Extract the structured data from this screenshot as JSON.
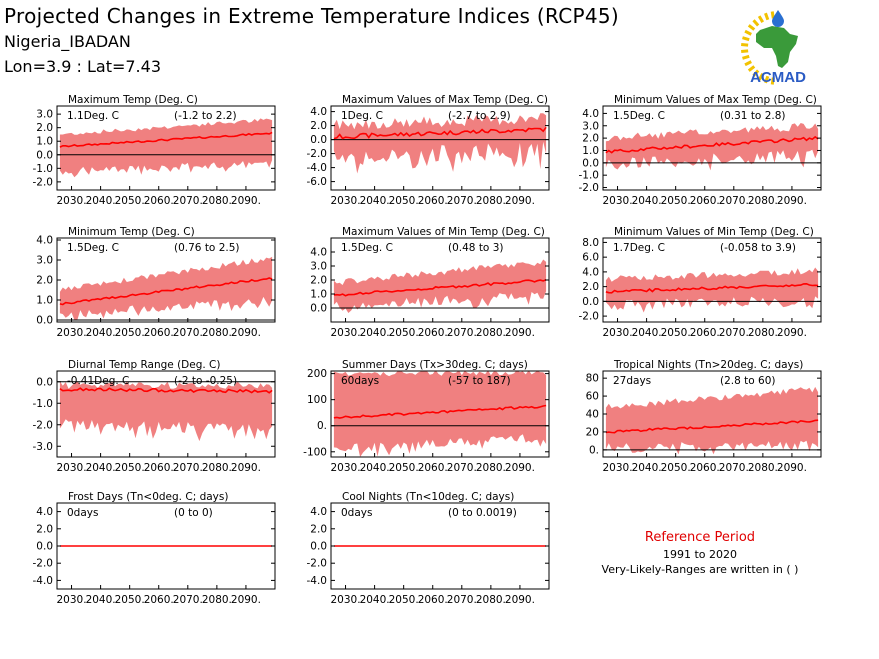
{
  "header": {
    "title": "Projected Changes in Extreme Temperature Indices (RCP45)",
    "location": "Nigeria_IBADAN",
    "coords": "Lon=3.9 : Lat=7.43"
  },
  "logo": {
    "text": "ACMAD",
    "icon": "africa-map-icon",
    "sun_color": "#f2c200",
    "drop_color": "#2a6fd1",
    "map_color": "#3a9a3a",
    "text_color": "#2a5bc4"
  },
  "reference": {
    "title": "Reference Period",
    "years": "1991 to 2020",
    "note": "Very-Likely-Ranges are written in ( )"
  },
  "colors": {
    "band": "#f08080",
    "line": "#ff0000",
    "zero": "#000000"
  },
  "chart_data": [
    {
      "type": "area",
      "title": "Maximum Temp (Deg. C)",
      "ann_left": "1.1Deg. C",
      "ann_right": "(-1.2 to 2.2)",
      "ylim": [
        -2.6,
        3.6
      ],
      "yticks": [
        -2,
        -1,
        0,
        1,
        2,
        3
      ],
      "ytick_labels": [
        "-2.0",
        "-1.0",
        "0.0",
        "1.0",
        "2.0",
        "3.0"
      ],
      "xticks": [
        2030,
        2040,
        2050,
        2060,
        2070,
        2080,
        2090
      ],
      "xtick_labels": [
        "2030.",
        "2040.",
        "2050.",
        "2060.",
        "2070.",
        "2080.",
        "2090."
      ],
      "x_range": [
        2025,
        2100
      ],
      "mean_start": 0.6,
      "mean_end": 1.6,
      "low_start": -1.2,
      "low_end": -0.6,
      "high_start": 1.5,
      "high_end": 2.6,
      "noise": 0.35
    },
    {
      "type": "area",
      "title": "Maximum Values of Max Temp (Deg. C)",
      "ann_left": "1Deg. C",
      "ann_right": "(-2.7 to 2.9)",
      "ylim": [
        -7.2,
        4.8
      ],
      "yticks": [
        -6,
        -4,
        -2,
        0,
        2,
        4
      ],
      "ytick_labels": [
        "-6.0",
        "-4.0",
        "-2.0",
        "0.0",
        "2.0",
        "4.0"
      ],
      "xticks": [
        2030,
        2040,
        2050,
        2060,
        2070,
        2080,
        2090
      ],
      "xtick_labels": [
        "2030.",
        "2040.",
        "2050.",
        "2060.",
        "2070.",
        "2080.",
        "2090."
      ],
      "x_range": [
        2025,
        2100
      ],
      "mean_start": 0.4,
      "mean_end": 1.5,
      "low_start": -2.5,
      "low_end": -1.5,
      "high_start": 2.2,
      "high_end": 3.0,
      "noise": 1.8
    },
    {
      "type": "area",
      "title": "Minimum Values of Max Temp (Deg. C)",
      "ann_left": "1.5Deg. C",
      "ann_right": "(0.31 to 2.8)",
      "ylim": [
        -2.2,
        4.6
      ],
      "yticks": [
        -2,
        -1,
        0,
        1,
        2,
        3,
        4
      ],
      "ytick_labels": [
        "-2.0",
        "-1.0",
        "0.0",
        "1.0",
        "2.0",
        "3.0",
        "4.0"
      ],
      "xticks": [
        2030,
        2040,
        2050,
        2060,
        2070,
        2080,
        2090
      ],
      "xtick_labels": [
        "2030.",
        "2040.",
        "2050.",
        "2060.",
        "2070.",
        "2080.",
        "2090."
      ],
      "x_range": [
        2025,
        2100
      ],
      "mean_start": 0.9,
      "mean_end": 2.0,
      "low_start": -0.1,
      "low_end": 0.7,
      "high_start": 2.0,
      "high_end": 3.0,
      "noise": 0.7
    },
    {
      "type": "area",
      "title": "Minimum Temp (Deg. C)",
      "ann_left": "1.5Deg. C",
      "ann_right": "(0.76 to 2.5)",
      "ylim": [
        -0.1,
        4.1
      ],
      "yticks": [
        0,
        1,
        2,
        3,
        4
      ],
      "ytick_labels": [
        "0.0",
        "1.0",
        "2.0",
        "3.0",
        "4.0"
      ],
      "xticks": [
        2030,
        2040,
        2050,
        2060,
        2070,
        2080,
        2090
      ],
      "xtick_labels": [
        "2030.",
        "2040.",
        "2050.",
        "2060.",
        "2070.",
        "2080.",
        "2090."
      ],
      "x_range": [
        2025,
        2100
      ],
      "mean_start": 0.8,
      "mean_end": 2.1,
      "low_start": 0.3,
      "low_end": 1.0,
      "high_start": 1.5,
      "high_end": 3.1,
      "noise": 0.3
    },
    {
      "type": "area",
      "title": "Maximum Values of Min Temp (Deg. C)",
      "ann_left": "1.5Deg. C",
      "ann_right": "(0.48 to 3)",
      "ylim": [
        -1.0,
        5.0
      ],
      "yticks": [
        0,
        1,
        2,
        3,
        4
      ],
      "ytick_labels": [
        "0.0",
        "1.0",
        "2.0",
        "3.0",
        "4.0"
      ],
      "xticks": [
        2030,
        2040,
        2050,
        2060,
        2070,
        2080,
        2090
      ],
      "xtick_labels": [
        "2030.",
        "2040.",
        "2050.",
        "2060.",
        "2070.",
        "2080.",
        "2090."
      ],
      "x_range": [
        2025,
        2100
      ],
      "mean_start": 0.9,
      "mean_end": 2.0,
      "low_start": 0.1,
      "low_end": 1.0,
      "high_start": 1.8,
      "high_end": 3.3,
      "noise": 0.5
    },
    {
      "type": "area",
      "title": "Minimum Values of Min Temp (Deg. C)",
      "ann_left": "1.7Deg. C",
      "ann_right": "(-0.058 to 3.9)",
      "ylim": [
        -2.8,
        8.6
      ],
      "yticks": [
        -2,
        0,
        2,
        4,
        6,
        8
      ],
      "ytick_labels": [
        "-2.0",
        "0.0",
        "2.0",
        "4.0",
        "6.0",
        "8.0"
      ],
      "xticks": [
        2030,
        2040,
        2050,
        2060,
        2070,
        2080,
        2090
      ],
      "xtick_labels": [
        "2030.",
        "2040.",
        "2050.",
        "2060.",
        "2070.",
        "2080.",
        "2090."
      ],
      "x_range": [
        2025,
        2100
      ],
      "mean_start": 1.3,
      "mean_end": 2.3,
      "low_start": -0.5,
      "low_end": 0.2,
      "high_start": 3.0,
      "high_end": 4.2,
      "noise": 1.0
    },
    {
      "type": "area",
      "title": "Diurnal Temp Range (Deg. C)",
      "ann_left": "-0.41Deg. C",
      "ann_right": "(-2 to -0.25)",
      "ylim": [
        -3.5,
        0.5
      ],
      "yticks": [
        -3,
        -2,
        -1,
        0
      ],
      "ytick_labels": [
        "-3.0",
        "-2.0",
        "-1.0",
        "0.0"
      ],
      "xticks": [
        2030,
        2040,
        2050,
        2060,
        2070,
        2080,
        2090
      ],
      "xtick_labels": [
        "2030.",
        "2040.",
        "2050.",
        "2060.",
        "2070.",
        "2080.",
        "2090."
      ],
      "x_range": [
        2025,
        2100
      ],
      "mean_start": -0.35,
      "mean_end": -0.45,
      "low_start": -1.9,
      "low_end": -2.3,
      "high_start": -0.15,
      "high_end": -0.15,
      "noise": 0.4
    },
    {
      "type": "area",
      "title": "Summer Days (Tx>30deg. C; days)",
      "ann_left": "60days",
      "ann_right": "(-57 to 187)",
      "ylim": [
        -120,
        210
      ],
      "yticks": [
        -100,
        0,
        100,
        200
      ],
      "ytick_labels": [
        "-100",
        "0.",
        "100",
        "200"
      ],
      "xticks": [
        2030,
        2040,
        2050,
        2060,
        2070,
        2080,
        2090
      ],
      "xtick_labels": [
        "2030.",
        "2040.",
        "2050.",
        "2060.",
        "2070.",
        "2080.",
        "2090."
      ],
      "x_range": [
        2025,
        2100
      ],
      "mean_start": 30,
      "mean_end": 75,
      "low_start": -90,
      "low_end": -45,
      "high_start": 200,
      "high_end": 205,
      "noise": 25
    },
    {
      "type": "area",
      "title": "Tropical Nights (Tn>20deg. C; days)",
      "ann_left": "27days",
      "ann_right": "(2.8 to 60)",
      "ylim": [
        -8,
        88
      ],
      "yticks": [
        0,
        20,
        40,
        60,
        80
      ],
      "ytick_labels": [
        "0.",
        "20",
        "40",
        "60",
        "80"
      ],
      "xticks": [
        2030,
        2040,
        2050,
        2060,
        2070,
        2080,
        2090
      ],
      "xtick_labels": [
        "2030.",
        "2040.",
        "2050.",
        "2060.",
        "2070.",
        "2080.",
        "2090."
      ],
      "x_range": [
        2025,
        2100
      ],
      "mean_start": 20,
      "mean_end": 32,
      "low_start": 2,
      "low_end": 5,
      "high_start": 48,
      "high_end": 68,
      "noise": 8
    },
    {
      "type": "area",
      "title": "Frost Days (Tn<0deg. C; days)",
      "ann_left": "0days",
      "ann_right": "(0 to 0)",
      "ylim": [
        -5.0,
        5.0
      ],
      "yticks": [
        -4,
        -2,
        0,
        2,
        4
      ],
      "ytick_labels": [
        "-4.0",
        "-2.0",
        "0.0",
        "2.0",
        "4.0"
      ],
      "xticks": [
        2030,
        2040,
        2050,
        2060,
        2070,
        2080,
        2090
      ],
      "xtick_labels": [
        "2030.",
        "2040.",
        "2050.",
        "2060.",
        "2070.",
        "2080.",
        "2090."
      ],
      "x_range": [
        2025,
        2100
      ],
      "mean_start": 0,
      "mean_end": 0,
      "low_start": 0,
      "low_end": 0,
      "high_start": 0,
      "high_end": 0,
      "noise": 0
    },
    {
      "type": "area",
      "title": "Cool Nights (Tn<10deg. C; days)",
      "ann_left": "0days",
      "ann_right": "(0 to 0.0019)",
      "ylim": [
        -5.0,
        5.0
      ],
      "yticks": [
        -4,
        -2,
        0,
        2,
        4
      ],
      "ytick_labels": [
        "-4.0",
        "-2.0",
        "0.0",
        "2.0",
        "4.0"
      ],
      "xticks": [
        2030,
        2040,
        2050,
        2060,
        2070,
        2080,
        2090
      ],
      "xtick_labels": [
        "2030.",
        "2040.",
        "2050.",
        "2060.",
        "2070.",
        "2080.",
        "2090."
      ],
      "x_range": [
        2025,
        2100
      ],
      "mean_start": 0,
      "mean_end": 0,
      "low_start": 0,
      "low_end": 0,
      "high_start": 0.02,
      "high_end": 0.02,
      "noise": 0
    }
  ]
}
